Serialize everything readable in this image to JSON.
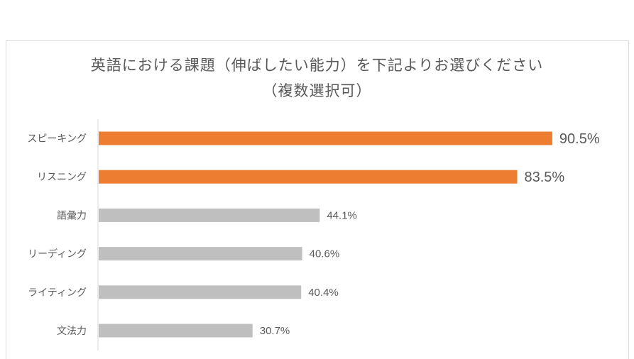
{
  "chart_data": {
    "type": "bar",
    "orientation": "horizontal",
    "title_lines": [
      "英語における課題（伸ばしたい能力）を下記よりお選びください",
      "（複数選択可）"
    ],
    "categories": [
      "スピーキング",
      "リスニング",
      "語彙力",
      "リーディング",
      "ライティング",
      "文法力"
    ],
    "values": [
      90.5,
      83.5,
      44.1,
      40.6,
      40.4,
      30.7
    ],
    "value_labels": [
      "90.5%",
      "83.5%",
      "44.1%",
      "40.6%",
      "40.4%",
      "30.7%"
    ],
    "xlim": [
      0,
      100
    ],
    "grid": false,
    "legend": "none",
    "colors": {
      "highlight": "#ED7D31",
      "normal": "#BFBFBF",
      "axis": "#D9D9D9",
      "text": "#595959"
    },
    "highlighted": [
      true,
      true,
      false,
      false,
      false,
      false
    ]
  }
}
